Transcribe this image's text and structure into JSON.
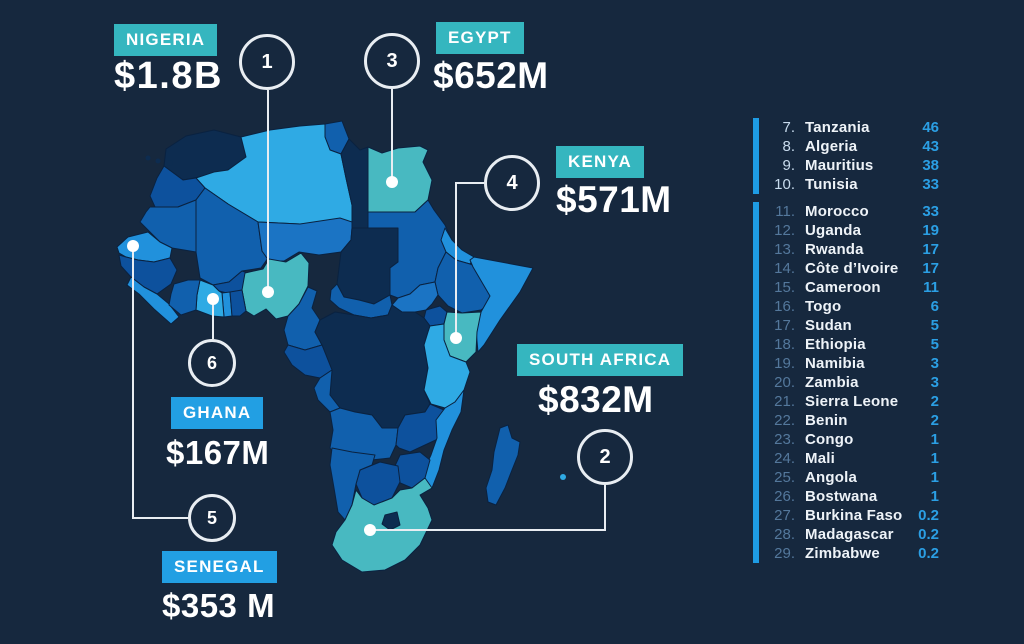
{
  "palette": {
    "bg": "#16283E",
    "map-dark": "#0d2c50",
    "map-mid": "#1160ad",
    "map-mid2": "#0d519d",
    "map-midbright": "#1b74c4",
    "map-bright": "#2191dc",
    "map-cyan": "#2faae4",
    "map-teal": "#48b9c1",
    "badge-teal": "#35b6bf",
    "badge-blue": "#229fe3",
    "bar-blue": "#1e9ce4",
    "value-blue": "#2b9fe4",
    "rank-light": "#c9dcee",
    "rank-muted": "#54789c",
    "line": "#e8edf2"
  },
  "callouts": [
    {
      "number": "1",
      "name": "NIGERIA",
      "amount": "$1.8B",
      "style": "teal"
    },
    {
      "number": "3",
      "name": "EGYPT",
      "amount": "$652M",
      "style": "teal"
    },
    {
      "number": "4",
      "name": "KENYA",
      "amount": "$571M",
      "style": "teal"
    },
    {
      "number": "2",
      "name": "SOUTH AFRICA",
      "amount": "$832M",
      "style": "teal"
    },
    {
      "number": "6",
      "name": "GHANA",
      "amount": "$167M",
      "style": "blue"
    },
    {
      "number": "5",
      "name": "SENEGAL",
      "amount": "$353 M",
      "style": "blue"
    }
  ],
  "ranking": {
    "group1": [
      {
        "rank": "7.",
        "country": "Tanzania",
        "value": "46"
      },
      {
        "rank": "8.",
        "country": "Algeria",
        "value": "43"
      },
      {
        "rank": "9.",
        "country": "Mauritius",
        "value": "38"
      },
      {
        "rank": "10.",
        "country": "Tunisia",
        "value": "33"
      }
    ],
    "group2": [
      {
        "rank": "11.",
        "country": "Morocco",
        "value": "33"
      },
      {
        "rank": "12.",
        "country": "Uganda",
        "value": "19"
      },
      {
        "rank": "13.",
        "country": "Rwanda",
        "value": "17"
      },
      {
        "rank": "14.",
        "country": "Côte d’Ivoire",
        "value": "17"
      },
      {
        "rank": "15.",
        "country": "Cameroon",
        "value": "11"
      },
      {
        "rank": "16.",
        "country": "Togo",
        "value": "6"
      },
      {
        "rank": "17.",
        "country": "Sudan",
        "value": "5"
      },
      {
        "rank": "18.",
        "country": "Ethiopia",
        "value": "5"
      },
      {
        "rank": "19.",
        "country": "Namibia",
        "value": "3"
      },
      {
        "rank": "20.",
        "country": "Zambia",
        "value": "3"
      },
      {
        "rank": "21.",
        "country": "Sierra Leone",
        "value": "2"
      },
      {
        "rank": "22.",
        "country": "Benin",
        "value": "2"
      },
      {
        "rank": "23.",
        "country": "Congo",
        "value": "1"
      },
      {
        "rank": "24.",
        "country": "Mali",
        "value": "1"
      },
      {
        "rank": "25.",
        "country": "Angola",
        "value": "1"
      },
      {
        "rank": "26.",
        "country": "Bostwana",
        "value": "1"
      },
      {
        "rank": "27.",
        "country": "Burkina Faso",
        "value": "0.2"
      },
      {
        "rank": "28.",
        "country": "Madagascar",
        "value": "0.2"
      },
      {
        "rank": "29.",
        "country": "Zimbabwe",
        "value": "0.2"
      }
    ]
  }
}
